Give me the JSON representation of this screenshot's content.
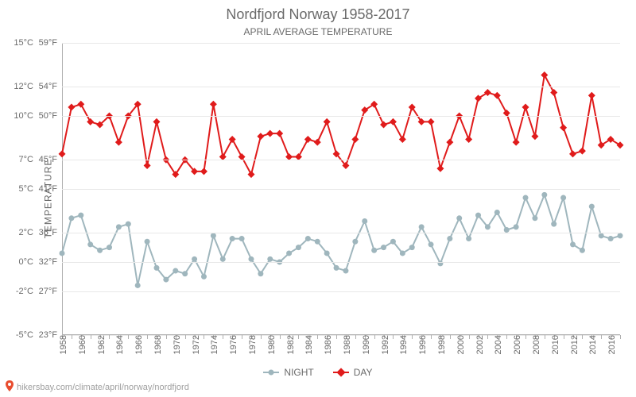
{
  "title": "Nordfjord Norway 1958-2017",
  "subtitle": "APRIL AVERAGE TEMPERATURE",
  "y_axis_label": "TEMPERATURE",
  "attribution_text": "hikersbay.com/climate/april/norway/nordfjord",
  "chart": {
    "type": "line",
    "background_color": "#ffffff",
    "grid_color": "#e8e8e8",
    "axis_color": "#b0b0b0",
    "text_color": "#6a6a6a",
    "title_fontsize": 18,
    "subtitle_fontsize": 12,
    "tick_fontsize": 11,
    "ylim_c": [
      -5,
      15
    ],
    "y_ticks_c": [
      {
        "c": -5,
        "f": 23
      },
      {
        "c": -2,
        "f": 27
      },
      {
        "c": 0,
        "f": 32
      },
      {
        "c": 2,
        "f": 36
      },
      {
        "c": 5,
        "f": 41
      },
      {
        "c": 7,
        "f": 45
      },
      {
        "c": 10,
        "f": 50
      },
      {
        "c": 12,
        "f": 54
      },
      {
        "c": 15,
        "f": 59
      }
    ],
    "x_years": [
      1958,
      1959,
      1960,
      1961,
      1962,
      1963,
      1964,
      1965,
      1966,
      1967,
      1968,
      1969,
      1970,
      1971,
      1972,
      1973,
      1974,
      1975,
      1976,
      1977,
      1978,
      1979,
      1980,
      1981,
      1982,
      1983,
      1984,
      1985,
      1986,
      1987,
      1988,
      1989,
      1990,
      1991,
      1992,
      1993,
      1994,
      1995,
      1996,
      1997,
      1998,
      1999,
      2000,
      2001,
      2002,
      2003,
      2004,
      2005,
      2006,
      2007,
      2008,
      2009,
      2010,
      2011,
      2012,
      2013,
      2014,
      2015,
      2016,
      2017
    ],
    "x_tick_every": 2,
    "series": [
      {
        "name": "NIGHT",
        "color": "#9fb6bd",
        "line_width": 2,
        "marker": "circle",
        "marker_size": 3.5,
        "values_c": [
          0.6,
          3.0,
          3.2,
          1.2,
          0.8,
          1.0,
          2.4,
          2.6,
          -1.6,
          1.4,
          -0.4,
          -1.2,
          -0.6,
          -0.8,
          0.2,
          -1.0,
          1.8,
          0.2,
          1.6,
          1.6,
          0.2,
          -0.8,
          0.2,
          0.0,
          0.6,
          1.0,
          1.6,
          1.4,
          0.6,
          -0.4,
          -0.6,
          1.4,
          2.8,
          0.8,
          1.0,
          1.4,
          0.6,
          1.0,
          2.4,
          1.2,
          -0.1,
          1.6,
          3.0,
          1.6,
          3.2,
          2.4,
          3.4,
          2.2,
          2.4,
          4.4,
          3.0,
          4.6,
          2.6,
          4.4,
          1.2,
          0.8,
          3.8,
          1.8,
          1.6,
          1.8
        ]
      },
      {
        "name": "DAY",
        "color": "#e01b1b",
        "line_width": 2,
        "marker": "diamond",
        "marker_size": 4.5,
        "values_c": [
          7.4,
          10.6,
          10.8,
          9.6,
          9.4,
          10.0,
          8.2,
          10.0,
          10.8,
          6.6,
          9.6,
          7.0,
          6.0,
          7.0,
          6.2,
          6.2,
          10.8,
          7.2,
          8.4,
          7.2,
          6.0,
          8.6,
          8.8,
          8.8,
          7.2,
          7.2,
          8.4,
          8.2,
          9.6,
          7.4,
          6.6,
          8.4,
          10.4,
          10.8,
          9.4,
          9.6,
          8.4,
          10.6,
          9.6,
          9.6,
          6.4,
          8.2,
          10.0,
          8.4,
          11.2,
          11.6,
          11.4,
          10.2,
          8.2,
          10.6,
          8.6,
          12.8,
          11.6,
          9.2,
          7.4,
          7.6,
          11.4,
          8.0,
          8.4,
          8.0
        ]
      }
    ]
  },
  "legend": {
    "items": [
      {
        "label": "NIGHT",
        "color": "#9fb6bd",
        "marker": "circle"
      },
      {
        "label": "DAY",
        "color": "#e01b1b",
        "marker": "diamond"
      }
    ]
  }
}
